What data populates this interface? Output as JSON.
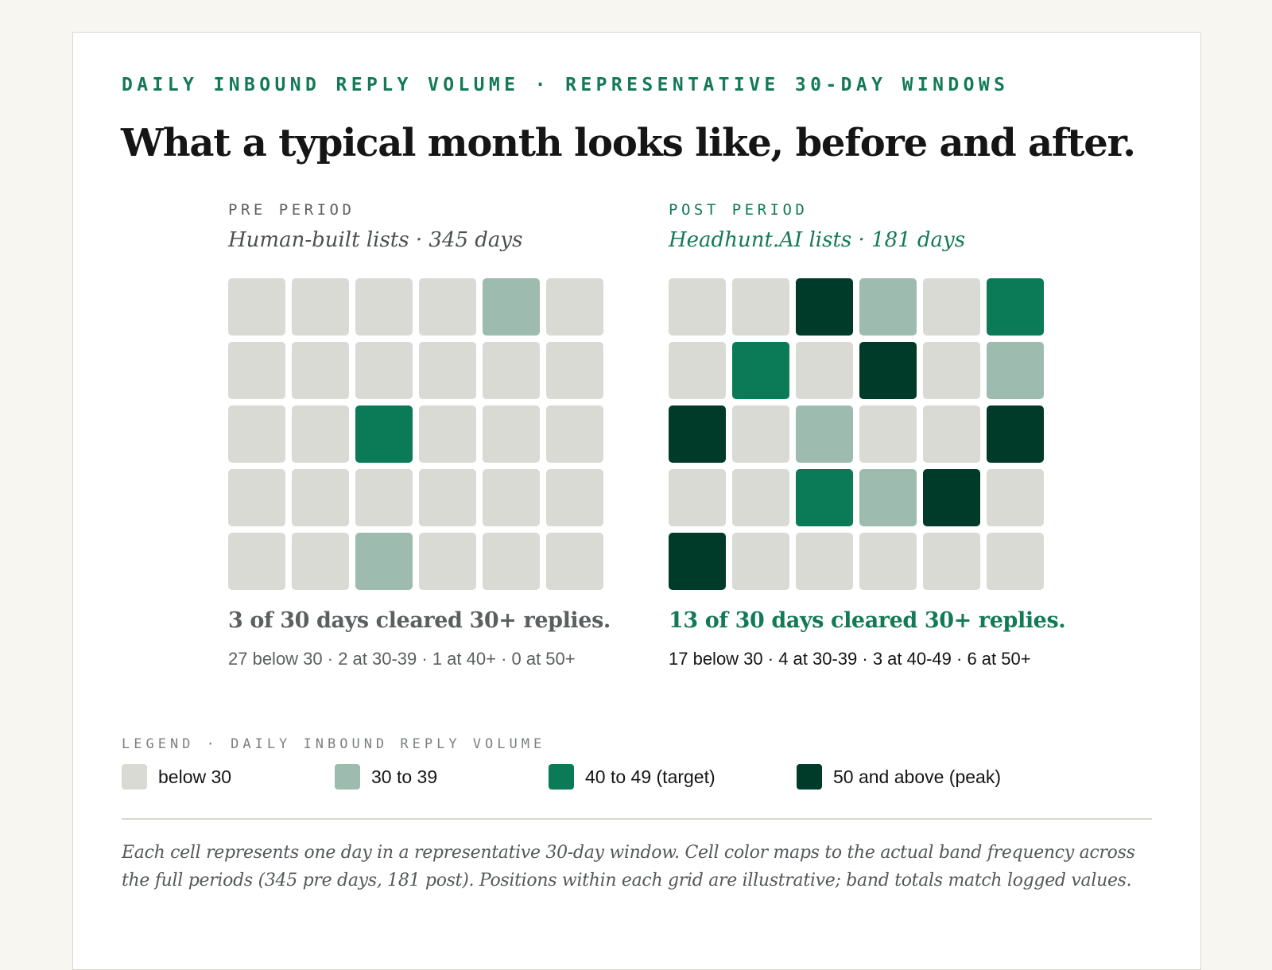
{
  "eyebrow": "DAILY INBOUND REPLY VOLUME · REPRESENTATIVE 30-DAY WINDOWS",
  "headline": "What a typical month looks like, before and after.",
  "colors": {
    "below_30": "#d9dad4",
    "30_to_39": "#9dbbaf",
    "40_to_49": "#0b7a56",
    "50_plus": "#003b2a",
    "accent": "#137a55"
  },
  "panels": {
    "pre": {
      "label": "PRE PERIOD",
      "subtitle": "Human-built lists · 345 days",
      "summary": "3 of 30 days cleared 30+ replies.",
      "breakdown": "27 below 30 · 2 at 30-39 · 1 at 40+ · 0 at 50+"
    },
    "post": {
      "label": "POST PERIOD",
      "subtitle": "Headhunt.AI lists · 181 days",
      "summary": "13 of 30 days cleared 30+ replies.",
      "breakdown": "17 below 30 · 4 at 30-39 · 3 at 40-49 · 6 at 50+"
    }
  },
  "legend": {
    "title": "LEGEND · DAILY INBOUND REPLY VOLUME",
    "items": [
      {
        "label": "below 30",
        "band": "below_30"
      },
      {
        "label": "30 to 39",
        "band": "30_to_39"
      },
      {
        "label": "40 to 49 (target)",
        "band": "40_to_49"
      },
      {
        "label": "50 and above (peak)",
        "band": "50_plus"
      }
    ]
  },
  "footnote": "Each cell represents one day in a representative 30-day window. Cell color maps to the actual band frequency across the full periods (345 pre days, 181 post). Positions within each grid are illustrative; band totals match logged values.",
  "chart_data": {
    "type": "heatmap",
    "bands": [
      "below 30",
      "30 to 39",
      "40 to 49 (target)",
      "50 and above (peak)"
    ],
    "rows": 5,
    "cols": 6,
    "grids": [
      {
        "name": "PRE PERIOD",
        "cells": [
          [
            0,
            0,
            0,
            0,
            1,
            0
          ],
          [
            0,
            0,
            0,
            0,
            0,
            0
          ],
          [
            0,
            0,
            2,
            0,
            0,
            0
          ],
          [
            0,
            0,
            0,
            0,
            0,
            0
          ],
          [
            0,
            0,
            1,
            0,
            0,
            0
          ]
        ]
      },
      {
        "name": "POST PERIOD",
        "cells": [
          [
            0,
            0,
            3,
            1,
            0,
            2
          ],
          [
            0,
            2,
            0,
            3,
            0,
            1
          ],
          [
            3,
            0,
            1,
            0,
            0,
            3
          ],
          [
            0,
            0,
            2,
            1,
            3,
            0
          ],
          [
            3,
            0,
            0,
            0,
            0,
            0
          ]
        ]
      }
    ]
  }
}
